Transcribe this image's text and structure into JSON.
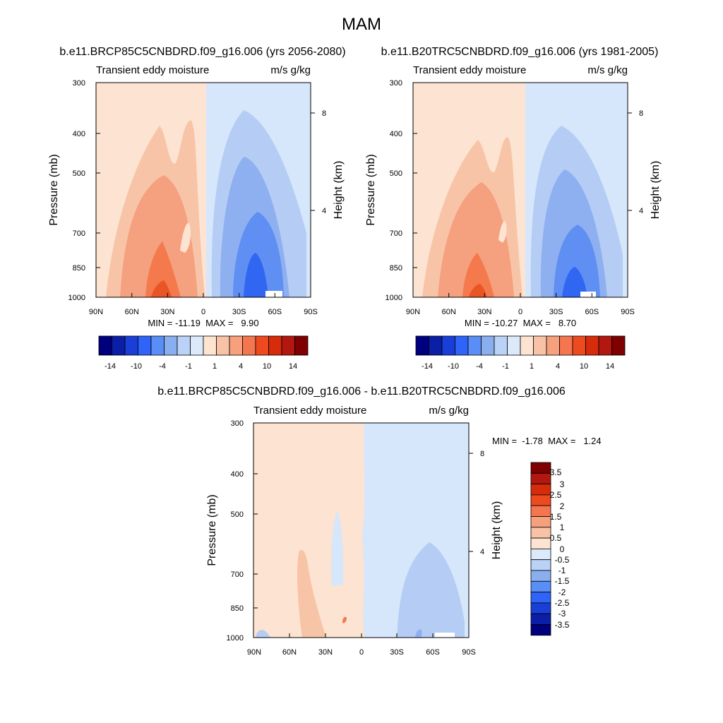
{
  "page_title": "MAM",
  "chart_data": [
    {
      "type": "heatmap",
      "title": "b.e11.BRCP85C5CNBDRD.f09_g16.006 (yrs 2056-2080)",
      "left_string": "Transient eddy moisture",
      "right_string": "m/s g/kg",
      "ylabel": "Pressure (mb)",
      "y2label": "Height (km)",
      "xticks": [
        "90N",
        "60N",
        "30N",
        "0",
        "30S",
        "60S",
        "90S"
      ],
      "yticks": [
        "300",
        "400",
        "500",
        "700",
        "850",
        "1000"
      ],
      "y2ticks": [
        "8",
        "4"
      ],
      "stats": "MIN = -11.19  MAX =   9.90",
      "min": -11.19,
      "max": 9.9,
      "colorbar_labels": [
        "-14",
        "-10",
        "-4",
        "-1",
        "1",
        "4",
        "10",
        "14"
      ],
      "colorbar_orientation": "horizontal",
      "features": [
        {
          "lat": 40,
          "p": 950,
          "value": 6.5
        },
        {
          "lat": 45,
          "p": 700,
          "value": 3.0
        },
        {
          "lat": -45,
          "p": 950,
          "value": -8.0
        },
        {
          "lat": -40,
          "p": 700,
          "value": -4.0
        }
      ]
    },
    {
      "type": "heatmap",
      "title": "b.e11.B20TRC5CNBDRD.f09_g16.006 (yrs 1981-2005)",
      "left_string": "Transient eddy moisture",
      "right_string": "m/s g/kg",
      "ylabel": "Pressure (mb)",
      "y2label": "Height (km)",
      "xticks": [
        "90N",
        "60N",
        "30N",
        "0",
        "30S",
        "60S",
        "90S"
      ],
      "yticks": [
        "300",
        "400",
        "500",
        "700",
        "850",
        "1000"
      ],
      "y2ticks": [
        "8",
        "4"
      ],
      "stats": "MIN = -10.27  MAX =   8.70",
      "min": -10.27,
      "max": 8.7,
      "colorbar_labels": [
        "-14",
        "-10",
        "-4",
        "-1",
        "1",
        "4",
        "10",
        "14"
      ],
      "colorbar_orientation": "horizontal",
      "features": [
        {
          "lat": 40,
          "p": 950,
          "value": 6.0
        },
        {
          "lat": 45,
          "p": 700,
          "value": 3.0
        },
        {
          "lat": -45,
          "p": 950,
          "value": -7.5
        },
        {
          "lat": -40,
          "p": 700,
          "value": -4.0
        }
      ]
    },
    {
      "type": "heatmap",
      "title": "b.e11.BRCP85C5CNBDRD.f09_g16.006 - b.e11.B20TRC5CNBDRD.f09_g16.006",
      "left_string": "Transient eddy moisture",
      "right_string": "m/s g/kg",
      "ylabel": "Pressure (mb)",
      "y2label": "Height (km)",
      "xticks": [
        "90N",
        "60N",
        "30N",
        "0",
        "30S",
        "60S",
        "90S"
      ],
      "yticks": [
        "300",
        "400",
        "500",
        "700",
        "850",
        "1000"
      ],
      "y2ticks": [
        "8",
        "4"
      ],
      "stats": "MIN =  -1.78  MAX =   1.24",
      "min": -1.78,
      "max": 1.24,
      "colorbar_labels": [
        "3.5",
        "3",
        "2.5",
        "2",
        "1.5",
        "1",
        "0.5",
        "0",
        "-0.5",
        "-1",
        "-1.5",
        "-2",
        "-2.5",
        "-3",
        "-3.5"
      ],
      "colorbar_orientation": "vertical",
      "features": [
        {
          "lat": 45,
          "p": 800,
          "value": 0.6
        },
        {
          "lat": -40,
          "p": 800,
          "value": -0.6
        }
      ]
    }
  ],
  "colors": {
    "full_scale": [
      "#00007f",
      "#0a1fa5",
      "#1a3fd9",
      "#2e64f7",
      "#5a8ef7",
      "#8aafef",
      "#b9d2f5",
      "#dbe9fb",
      "#fde4d1",
      "#f8c2a6",
      "#f6a07e",
      "#f4764f",
      "#ee4a1f",
      "#d62c0c",
      "#b2180f",
      "#7f0000"
    ],
    "full_fill_blue_1": "#d6e7fb",
    "full_fill_blue_2": "#b5cdf4",
    "full_fill_blue_3": "#8fb0f0",
    "full_fill_blue_4": "#5f8ff3",
    "full_fill_blue_5": "#3166f3",
    "full_fill_red_1": "#fde3d1",
    "full_fill_red_2": "#f8c4a7",
    "full_fill_red_3": "#f5a07e",
    "full_fill_red_4": "#f47a4d",
    "full_fill_red_5": "#ea5525",
    "diff_fill_red": "#f8c4a7",
    "diff_fill_blue": "#b5cdf4"
  }
}
